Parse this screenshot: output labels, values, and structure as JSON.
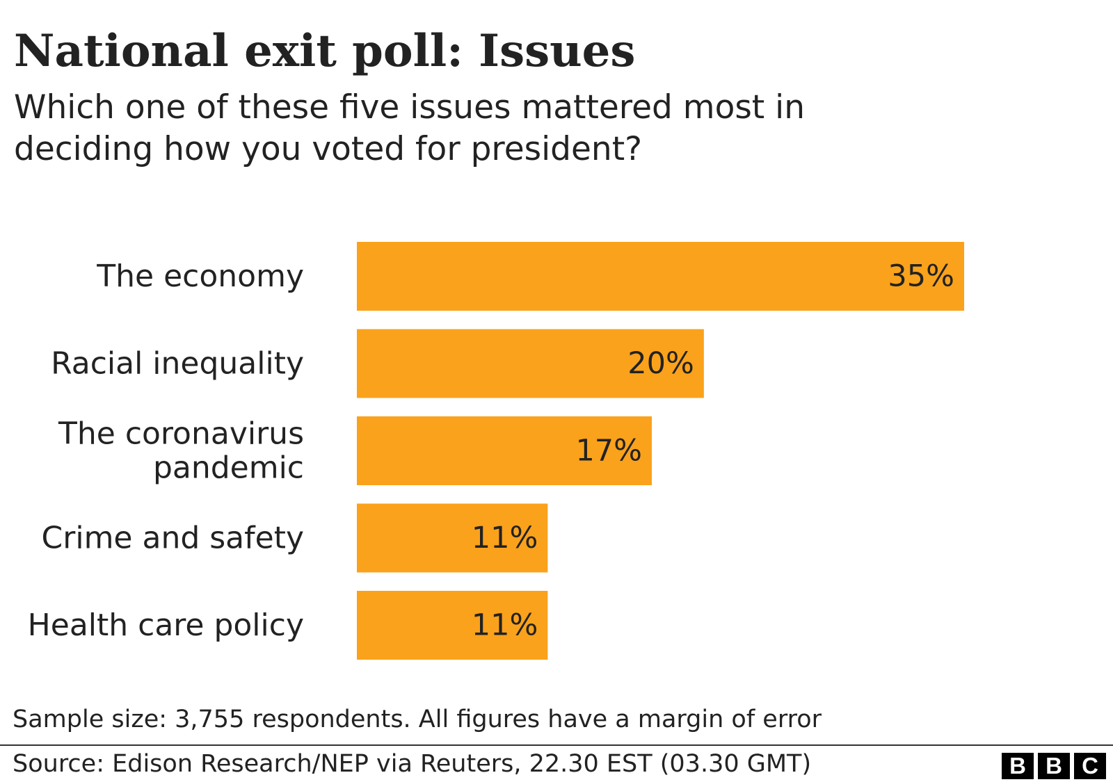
{
  "title": "National exit poll: Issues",
  "subtitle": "Which one of these five issues mattered most in deciding how you voted for president?",
  "chart_data": {
    "type": "bar",
    "orientation": "horizontal",
    "categories": [
      [
        "The economy"
      ],
      [
        "Racial inequality"
      ],
      [
        "The coronavirus",
        "pandemic"
      ],
      [
        "Crime and safety"
      ],
      [
        "Health care policy"
      ]
    ],
    "values": [
      35,
      20,
      17,
      11,
      11
    ],
    "value_labels": [
      "35%",
      "20%",
      "17%",
      "11%",
      "11%"
    ],
    "bar_color": "#FAA21B",
    "xlim": [
      0,
      35
    ],
    "grid": false,
    "legend": "none"
  },
  "footnote": "Sample size: 3,755 respondents. All figures have a margin of error",
  "source": "Source: Edison Research/NEP via Reuters, 22.30 EST (03.30 GMT)",
  "logo": {
    "letters": [
      "B",
      "B",
      "C"
    ]
  }
}
